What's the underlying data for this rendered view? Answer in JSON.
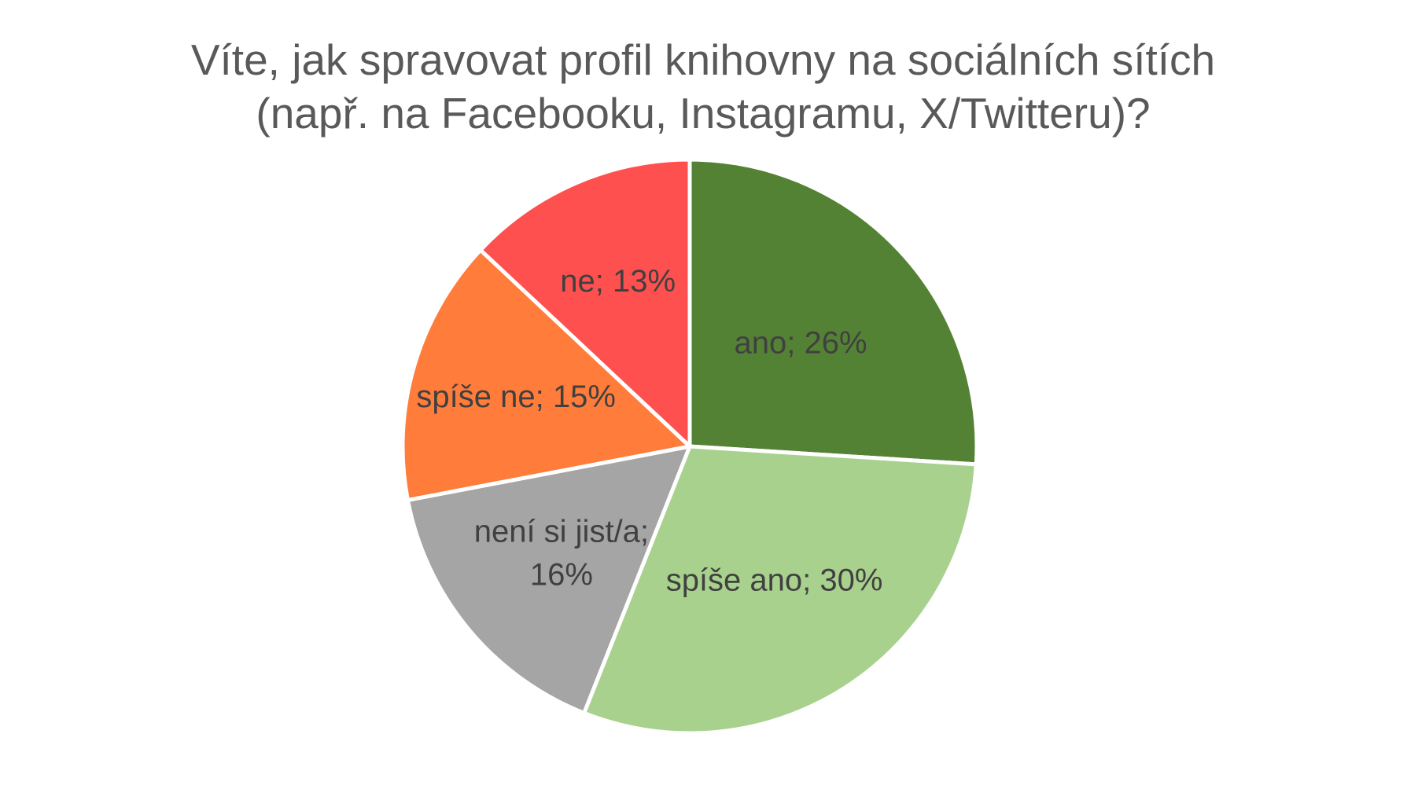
{
  "chart_data": {
    "type": "pie",
    "title_lines": [
      "Víte, jak spravovat profil knihovny na sociálních sítích",
      "(např. na Facebooku, Instagramu, X/Twitteru)?"
    ],
    "start_angle_deg": 0,
    "direction": "clockwise",
    "legend": "none",
    "slices": [
      {
        "category": "ano",
        "value": 26,
        "color": "#548235",
        "label_lines": [
          "ano; 26%"
        ]
      },
      {
        "category": "spíše ano",
        "value": 30,
        "color": "#A9D18E",
        "label_lines": [
          "spíše ano; 30%"
        ]
      },
      {
        "category": "není si jist/a",
        "value": 16,
        "color": "#A5A5A5",
        "label_lines": [
          "není si jist/a;",
          "16%"
        ]
      },
      {
        "category": "spíše ne",
        "value": 15,
        "color": "#FF7C3A",
        "label_lines": [
          "spíše ne; 15%"
        ]
      },
      {
        "category": "ne",
        "value": 13,
        "color": "#FF5050",
        "label_lines": [
          "ne; 13%"
        ]
      }
    ]
  }
}
